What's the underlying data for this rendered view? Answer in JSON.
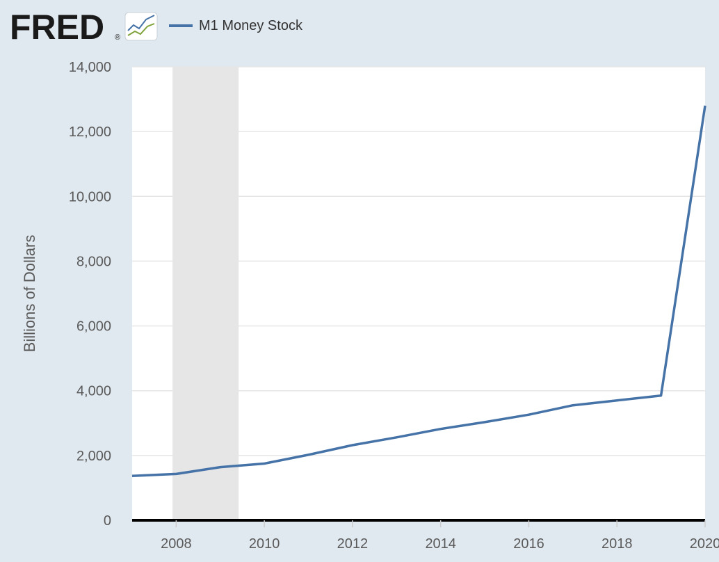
{
  "logo": {
    "text": "FRED",
    "mark": "®",
    "icon": "line-chart-icon"
  },
  "colors": {
    "background": "#e1e9f0",
    "plot_bg": "#ffffff",
    "series": "#4572a7",
    "recession": "#e6e6e6",
    "gridline": "#e6e6e6",
    "baseline": "#000000",
    "logo_icon_line1": "#4572a7",
    "logo_icon_line2": "#7fa33a"
  },
  "chart_data": {
    "type": "line",
    "title": "",
    "xlabel": "",
    "ylabel": "Billions of Dollars",
    "legend": {
      "position": "top-left",
      "entries": [
        "M1 Money Stock"
      ]
    },
    "grid": true,
    "xlim": [
      2007,
      2020
    ],
    "ylim": [
      0,
      14000
    ],
    "x_ticks": [
      2008,
      2010,
      2012,
      2014,
      2016,
      2018,
      2020
    ],
    "y_ticks": [
      0,
      2000,
      4000,
      6000,
      8000,
      10000,
      12000,
      14000
    ],
    "y_tick_labels": [
      "0",
      "2,000",
      "4,000",
      "6,000",
      "8,000",
      "10,000",
      "12,000",
      "14,000"
    ],
    "recession": {
      "start": 2007.917,
      "end": 2009.417
    },
    "series": [
      {
        "name": "M1 Money Stock",
        "x": [
          2007,
          2008,
          2009,
          2010,
          2011,
          2012,
          2013,
          2014,
          2015,
          2016,
          2017,
          2018,
          2019,
          2020
        ],
        "values": [
          1370,
          1430,
          1640,
          1750,
          2020,
          2320,
          2560,
          2820,
          3030,
          3260,
          3550,
          3700,
          3850,
          12800
        ]
      }
    ]
  }
}
